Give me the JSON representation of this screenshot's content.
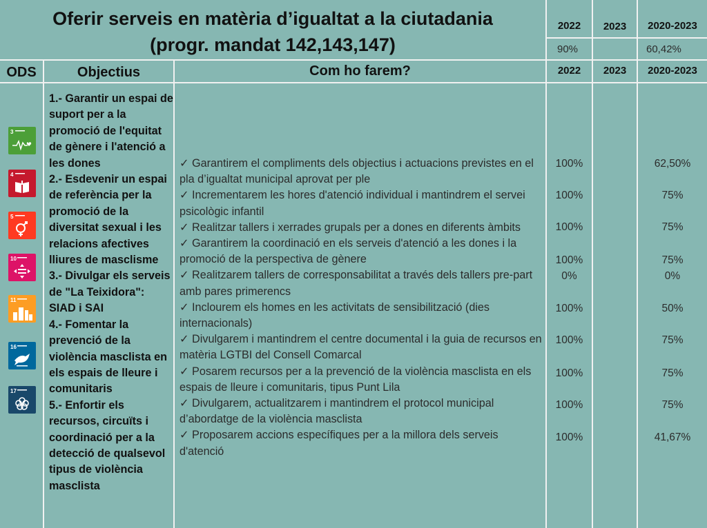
{
  "header": {
    "title_line1": "Oferir serveis en matèria d’igualtat a la ciutadania",
    "title_line2": "(progr. mandat 142,143,147)",
    "year_2022": "2022",
    "year_2023": "2023",
    "year_range": "2020-2023",
    "summary_2022": "90%",
    "summary_2023": "",
    "summary_range": "60,42%"
  },
  "columns": {
    "ods": "ODS",
    "objectius": "Objectius",
    "com": "Com ho farem?",
    "c2022": "2022",
    "c2023": "2023",
    "crange": "2020-2023"
  },
  "sdg_icons": [
    {
      "number": "3",
      "color": "#4c9f38",
      "icon": "heartbeat-icon"
    },
    {
      "number": "4",
      "color": "#c5192d",
      "icon": "book-icon"
    },
    {
      "number": "5",
      "color": "#ff3a21",
      "icon": "gender-icon"
    },
    {
      "number": "10",
      "color": "#dd1367",
      "icon": "inequality-icon"
    },
    {
      "number": "11",
      "color": "#fd9d24",
      "icon": "city-icon"
    },
    {
      "number": "16",
      "color": "#00689d",
      "icon": "dove-icon"
    },
    {
      "number": "17",
      "color": "#19486a",
      "icon": "partnership-icon"
    }
  ],
  "objectives": [
    "1.- Garantir un espai de suport per a la promoció de l'equitat de gènere i l'atenció a les dones",
    "2.- Esdevenir un espai de referència per la promoció de la diversitat sexual i les relacions afectives lliures de masclisme",
    "3.- Divulgar els serveis de \"La Teixidora\": SIAD i SAI",
    "4.- Fomentar la prevenció de la violència masclista en els espais de lleure i comunitaris",
    "5.- Enfortir els recursos, circuïts i coordinació per a la detecció de qualsevol tipus de violència masclista"
  ],
  "actions": [
    {
      "text": "✓ Garantirem el compliments dels objectius i actuacions previstes en el pla d’igualtat municipal aprovat per ple",
      "v2022": "100%",
      "vrange": "62,50%"
    },
    {
      "text": "✓ Incrementarem les hores d'atenció individual i mantindrem el servei psicològic infantil",
      "v2022": "100%",
      "vrange": "75%"
    },
    {
      "text": "✓ Realitzar tallers i xerrades grupals per a dones en diferents àmbits",
      "v2022": "100%",
      "vrange": "75%"
    },
    {
      "text": "✓ Garantirem la coordinació en els serveis d'atenció a les dones i la promoció de la perspectiva de gènere",
      "v2022": "100%",
      "vrange": "75%"
    },
    {
      "text": "✓ Realitzarem tallers de corresponsabilitat a través dels tallers pre-part amb pares primerencs",
      "v2022": "0%",
      "vrange": "0%"
    },
    {
      "text": "✓ Inclourem els homes en les activitats de sensibilització (dies internacionals)",
      "v2022": "100%",
      "vrange": "50%"
    },
    {
      "text": "✓ Divulgarem i mantindrem el centre documental i la guia de recursos en matèria LGTBI del Consell Comarcal",
      "v2022": "100%",
      "vrange": "75%"
    },
    {
      "text": "✓ Posarem recursos per a la prevenció de la violència masclista en els espais de lleure i comunitaris, tipus Punt Lila",
      "v2022": "100%",
      "vrange": "75%"
    },
    {
      "text": "✓ Divulgarem, actualitzarem i mantindrem el protocol municipal d’abordatge de la violència masclista",
      "v2022": "100%",
      "vrange": "75%"
    },
    {
      "text": "✓ Proposarem accions específiques per a la millora dels serveis d'atenció",
      "v2022": "100%",
      "vrange": "41,67%"
    }
  ]
}
